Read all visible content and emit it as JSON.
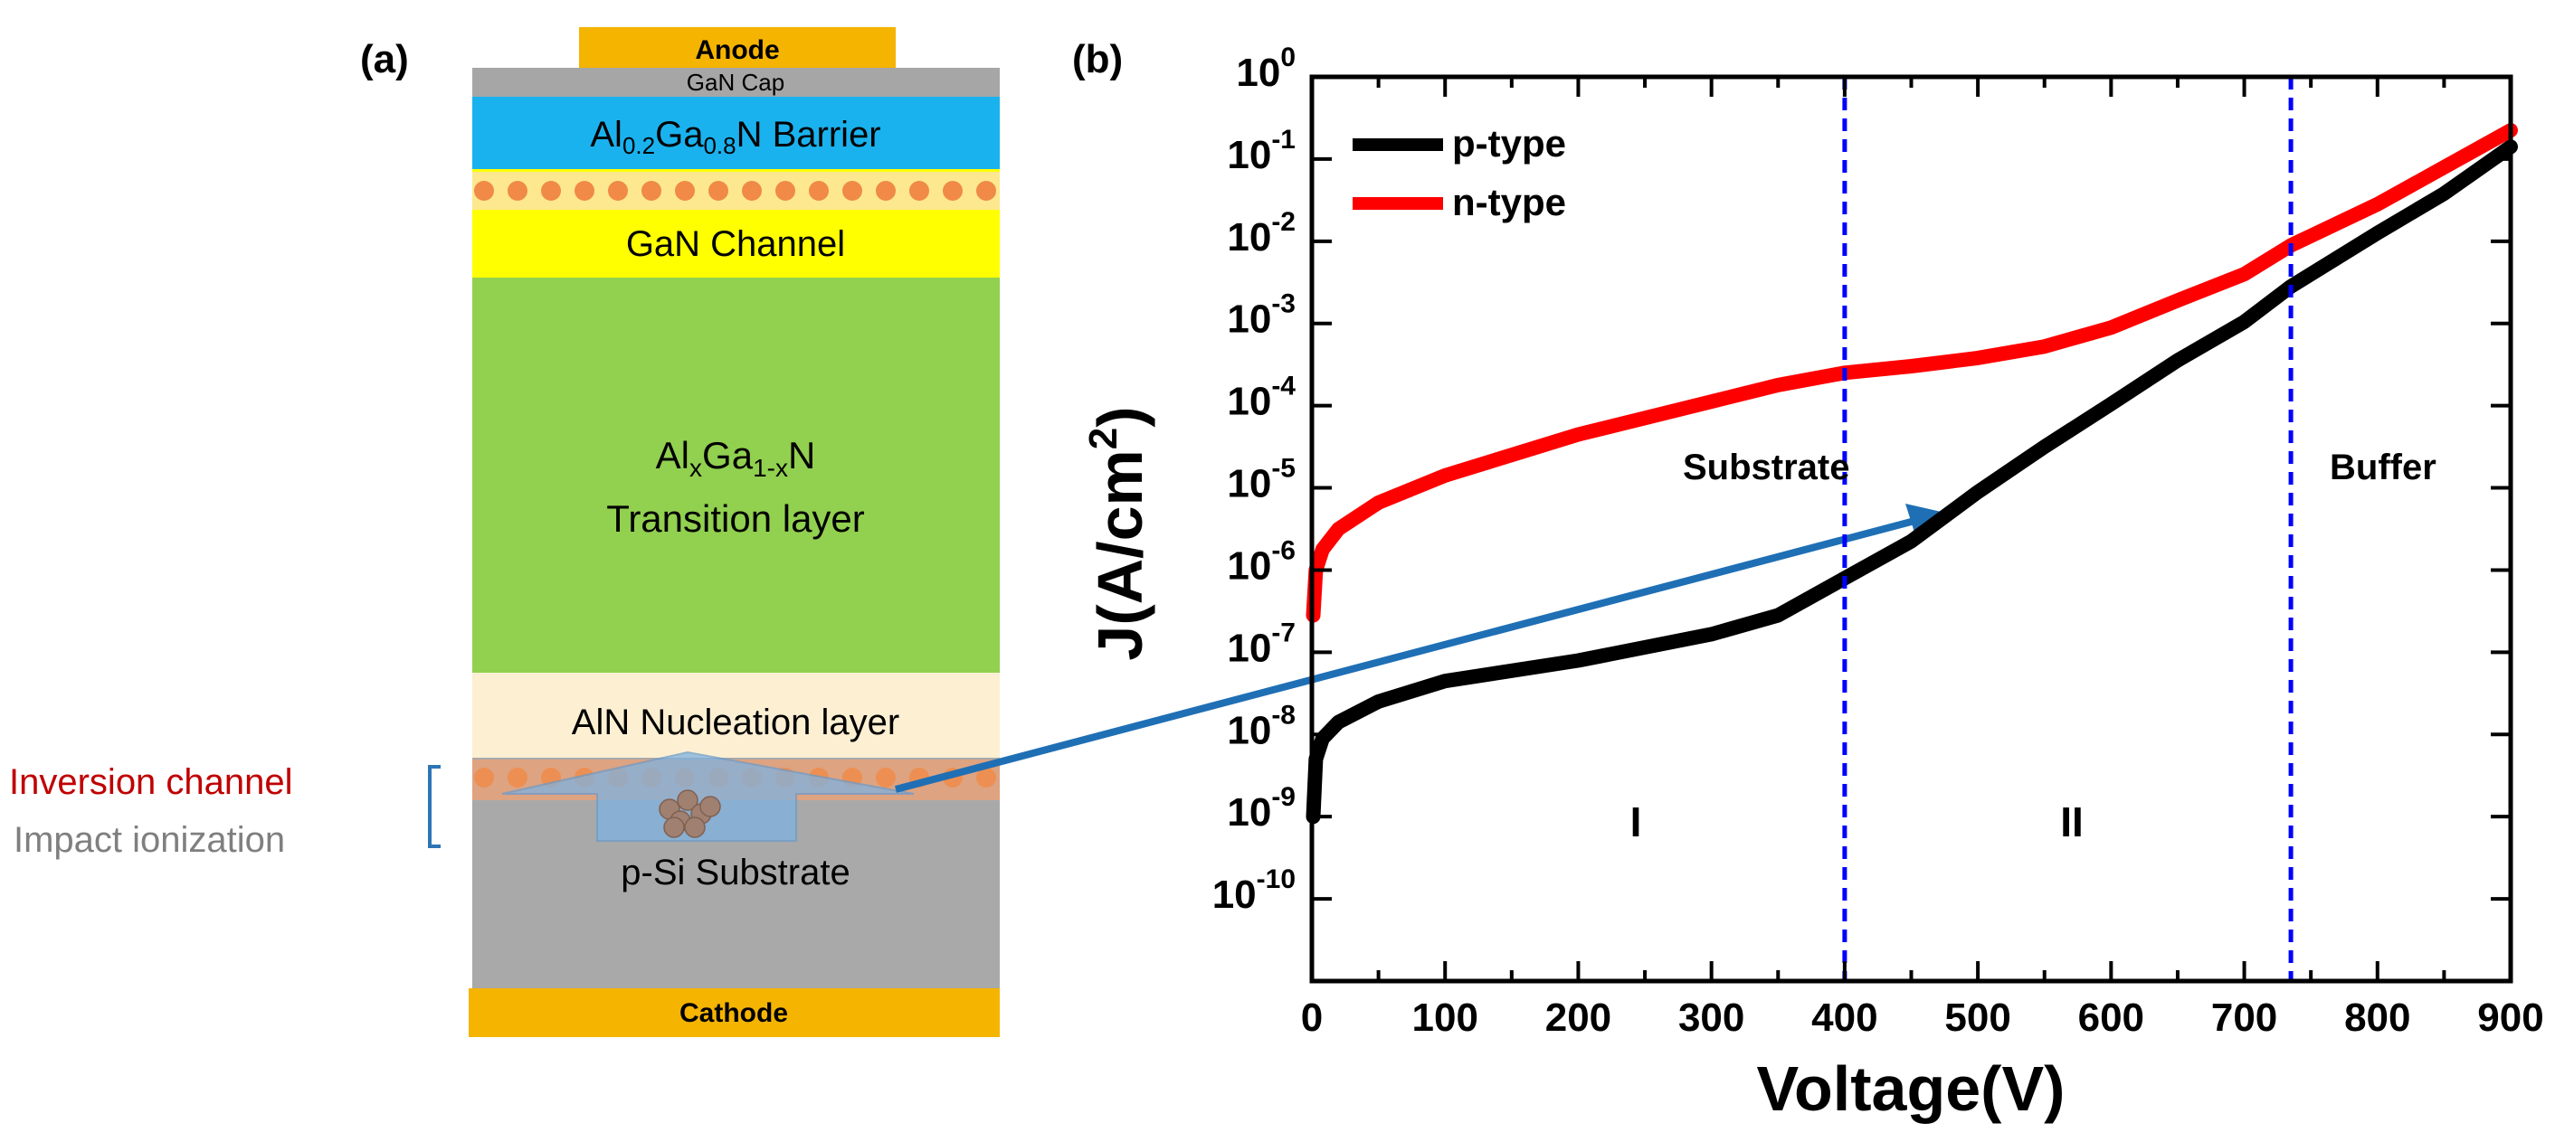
{
  "panel_a": {
    "label": "(a)",
    "layers": {
      "anode": "Anode",
      "gan_cap": "GaN Cap",
      "barrier": {
        "al": "Al",
        "al_sub": "0.2",
        "ga": "Ga",
        "ga_sub": "0.8",
        "rest": "N Barrier"
      },
      "channel": "GaN Channel",
      "transition": {
        "al": "Al",
        "al_sub": "x",
        "ga": "Ga",
        "ga_sub": "1-x",
        "rest": "N",
        "line2": "Transition layer"
      },
      "nucleation": "AlN Nucleation layer",
      "substrate": "p-Si Substrate",
      "cathode": "Cathode"
    },
    "annotations": {
      "inversion": "Inversion channel",
      "impact": "Impact ionization"
    },
    "colors": {
      "anode": "#f5b400",
      "gan_cap": "#a6a6a6",
      "barrier": "#1ab2ee",
      "channel": "#ffff00",
      "transition": "#92d050",
      "nucleation": "#fdefd2",
      "substrate": "#a9a9a9",
      "inversion_text": "#c00000",
      "impact_text": "#7f7f7f",
      "dots": "#f08a46",
      "arrow": "#1f6fb5"
    }
  },
  "chart_data": {
    "type": "line",
    "panel_label": "(b)",
    "title": "",
    "xlabel": "Voltage(V)",
    "ylabel": "J(A/cm2)",
    "ylabel_base": "J(A/cm",
    "ylabel_sup": "2",
    "ylabel_end": ")",
    "y_scale": "log",
    "xlim": [
      0,
      900
    ],
    "ylim_exp": [
      -11,
      0
    ],
    "x_ticks": [
      "0",
      "100",
      "200",
      "300",
      "400",
      "500",
      "600",
      "700",
      "800",
      "900"
    ],
    "y_ticks": [
      {
        "exp": 0,
        "base": "10",
        "sup": "0"
      },
      {
        "exp": -1,
        "base": "10",
        "sup": "-1"
      },
      {
        "exp": -2,
        "base": "10",
        "sup": "-2"
      },
      {
        "exp": -3,
        "base": "10",
        "sup": "-3"
      },
      {
        "exp": -4,
        "base": "10",
        "sup": "-4"
      },
      {
        "exp": -5,
        "base": "10",
        "sup": "-5"
      },
      {
        "exp": -6,
        "base": "10",
        "sup": "-6"
      },
      {
        "exp": -7,
        "base": "10",
        "sup": "-7"
      },
      {
        "exp": -8,
        "base": "10",
        "sup": "-8"
      },
      {
        "exp": -9,
        "base": "10",
        "sup": "-9"
      },
      {
        "exp": -10,
        "base": "10",
        "sup": "-10"
      }
    ],
    "legend_position": "top-left",
    "series": [
      {
        "name": "p-type",
        "color": "#000000",
        "points": [
          [
            1,
            -9.0
          ],
          [
            3,
            -8.3
          ],
          [
            8,
            -8.05
          ],
          [
            20,
            -7.85
          ],
          [
            50,
            -7.6
          ],
          [
            100,
            -7.35
          ],
          [
            200,
            -7.1
          ],
          [
            300,
            -6.78
          ],
          [
            350,
            -6.55
          ],
          [
            400,
            -6.1
          ],
          [
            450,
            -5.65
          ],
          [
            500,
            -5.05
          ],
          [
            550,
            -4.5
          ],
          [
            600,
            -3.98
          ],
          [
            650,
            -3.45
          ],
          [
            700,
            -2.98
          ],
          [
            735,
            -2.55
          ],
          [
            800,
            -1.9
          ],
          [
            850,
            -1.42
          ],
          [
            900,
            -0.85
          ]
        ]
      },
      {
        "name": "n-type",
        "color": "#ff0000",
        "points": [
          [
            1,
            -6.55
          ],
          [
            3,
            -6.0
          ],
          [
            8,
            -5.75
          ],
          [
            20,
            -5.5
          ],
          [
            50,
            -5.18
          ],
          [
            100,
            -4.85
          ],
          [
            200,
            -4.35
          ],
          [
            300,
            -3.95
          ],
          [
            350,
            -3.75
          ],
          [
            400,
            -3.6
          ],
          [
            450,
            -3.52
          ],
          [
            500,
            -3.42
          ],
          [
            550,
            -3.28
          ],
          [
            600,
            -3.05
          ],
          [
            650,
            -2.72
          ],
          [
            700,
            -2.4
          ],
          [
            735,
            -2.05
          ],
          [
            800,
            -1.55
          ],
          [
            850,
            -1.1
          ],
          [
            900,
            -0.65
          ]
        ]
      }
    ],
    "vlines": [
      {
        "x": 400,
        "color": "#0000ff"
      },
      {
        "x": 735,
        "color": "#0000ff"
      }
    ],
    "annotations": {
      "substrate": "Substrate",
      "buffer": "Buffer",
      "region1": "I",
      "region2": "II"
    }
  }
}
